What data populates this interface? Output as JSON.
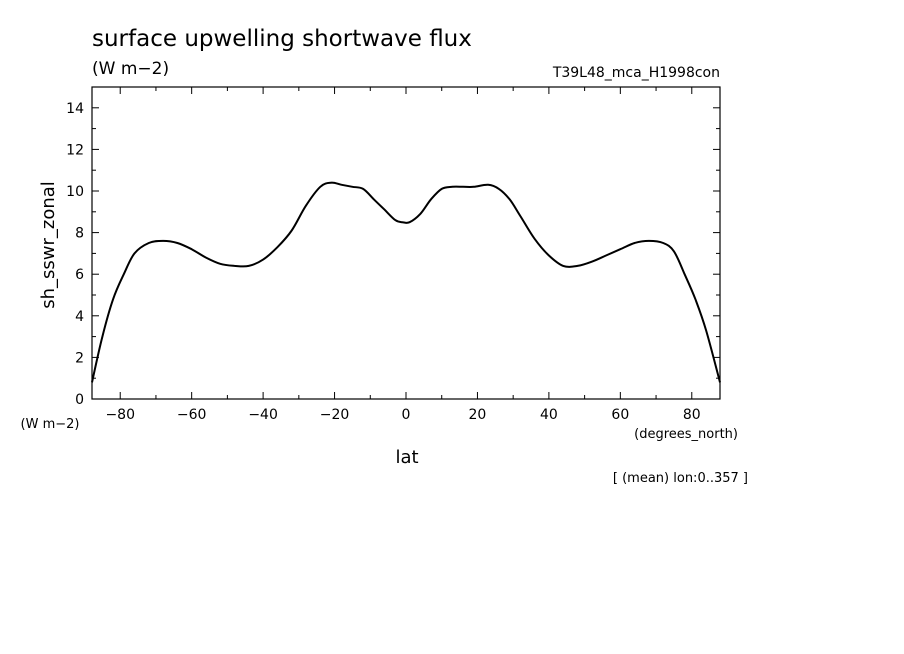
{
  "chart_data": {
    "type": "line",
    "title": "surface upwelling shortwave flux",
    "subtitle_units": "(W m−2)",
    "experiment": "T39L48_mca_H1998con",
    "xlabel": "lat",
    "xunits": "(degrees_north)",
    "ylabel": "sh_sswr_zonal",
    "yunits": "(W m−2)",
    "note": "[ (mean) lon:0..357 ]",
    "xlim": [
      -87.9,
      87.9
    ],
    "ylim": [
      0,
      15
    ],
    "xticks": [
      -80,
      -60,
      -40,
      -20,
      0,
      20,
      40,
      60,
      80
    ],
    "yticks": [
      0,
      2,
      4,
      6,
      8,
      10,
      12,
      14
    ],
    "xtick_labels": [
      "−80",
      "−60",
      "−40",
      "−20",
      "0",
      "20",
      "40",
      "60",
      "80"
    ],
    "ytick_labels": [
      "0",
      "2",
      "4",
      "6",
      "8",
      "10",
      "12",
      "14"
    ],
    "grid": false,
    "x": [
      -87.9,
      -85,
      -82,
      -79,
      -76,
      -72,
      -68,
      -64,
      -60,
      -56,
      -52,
      -48,
      -44,
      -40,
      -36,
      -32,
      -28,
      -24,
      -21,
      -18,
      -15,
      -12,
      -9,
      -6,
      -3,
      -1,
      1,
      4,
      7,
      10,
      13,
      16,
      19,
      23,
      26,
      29,
      32,
      36,
      40,
      44,
      48,
      52,
      56,
      60,
      64,
      68,
      72,
      75,
      78,
      81,
      84,
      87.9
    ],
    "y": [
      0.8,
      3.0,
      4.8,
      6.0,
      7.0,
      7.5,
      7.6,
      7.5,
      7.2,
      6.8,
      6.5,
      6.4,
      6.4,
      6.7,
      7.3,
      8.1,
      9.3,
      10.2,
      10.4,
      10.3,
      10.2,
      10.1,
      9.6,
      9.1,
      8.6,
      8.5,
      8.5,
      8.9,
      9.6,
      10.1,
      10.2,
      10.2,
      10.2,
      10.3,
      10.1,
      9.6,
      8.8,
      7.7,
      6.9,
      6.4,
      6.4,
      6.6,
      6.9,
      7.2,
      7.5,
      7.6,
      7.5,
      7.1,
      6.0,
      4.8,
      3.3,
      0.8
    ]
  }
}
